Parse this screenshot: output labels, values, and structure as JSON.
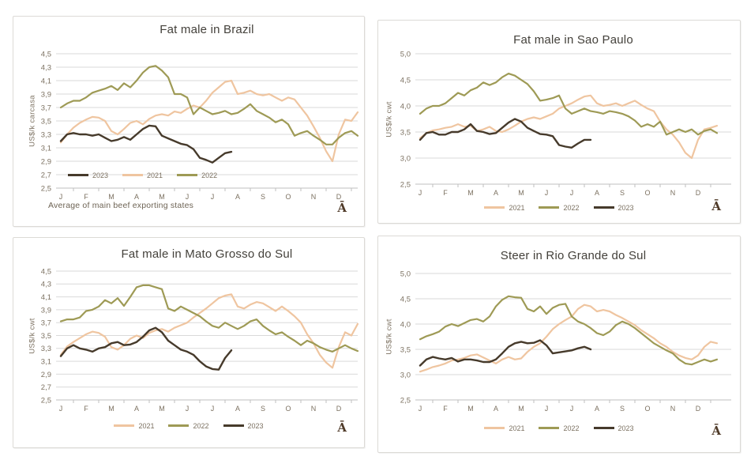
{
  "watermark": "Ā",
  "colors": {
    "series_2021": "#efc5a0",
    "series_2022": "#9e9a55",
    "series_2023": "#463a2b",
    "grid": "#d9d9d9",
    "axis": "#bfbfbf",
    "tick_text": "#7c7161",
    "title_text": "#44413b"
  },
  "chart_data": [
    {
      "type": "line",
      "title": "Fat male in Brazil",
      "ylabel": "US$/k carcasa",
      "ymin": 2.5,
      "ymax": 4.5,
      "yticks": [
        "4,5",
        "4,3",
        "4,1",
        "3,9",
        "3,7",
        "3,5",
        "3,3",
        "3,1",
        "2,9",
        "2,7",
        "2,5"
      ],
      "months": [
        "J",
        "F",
        "M",
        "A",
        "M",
        "J",
        "J",
        "A",
        "S",
        "O",
        "N",
        "D"
      ],
      "legend": [
        "2023",
        "2021",
        "2022"
      ],
      "footnote": "Average  of main beef exporting states",
      "series": [
        {
          "name": "2021",
          "color": "#efc5a0",
          "width": 2.2,
          "values": [
            3.18,
            3.3,
            3.4,
            3.47,
            3.52,
            3.56,
            3.55,
            3.5,
            3.35,
            3.3,
            3.38,
            3.47,
            3.5,
            3.45,
            3.53,
            3.58,
            3.6,
            3.58,
            3.64,
            3.62,
            3.68,
            3.73,
            3.7,
            3.8,
            3.92,
            4.0,
            4.08,
            4.1,
            3.9,
            3.92,
            3.95,
            3.9,
            3.88,
            3.9,
            3.85,
            3.8,
            3.85,
            3.82,
            3.7,
            3.58,
            3.42,
            3.25,
            3.05,
            2.9,
            3.3,
            3.52,
            3.5,
            3.63
          ]
        },
        {
          "name": "2022",
          "color": "#9e9a55",
          "width": 2.2,
          "values": [
            3.7,
            3.76,
            3.8,
            3.8,
            3.85,
            3.92,
            3.95,
            3.98,
            4.02,
            3.96,
            4.06,
            4.0,
            4.1,
            4.22,
            4.3,
            4.32,
            4.25,
            4.15,
            3.9,
            3.9,
            3.85,
            3.6,
            3.7,
            3.65,
            3.6,
            3.62,
            3.65,
            3.6,
            3.62,
            3.68,
            3.75,
            3.65,
            3.6,
            3.55,
            3.48,
            3.52,
            3.45,
            3.28,
            3.32,
            3.35,
            3.28,
            3.22,
            3.15,
            3.15,
            3.25,
            3.32,
            3.35,
            3.28
          ]
        },
        {
          "name": "2023",
          "color": "#463a2b",
          "width": 2.4,
          "values": [
            3.2,
            3.3,
            3.32,
            3.3,
            3.3,
            3.28,
            3.3,
            3.25,
            3.2,
            3.22,
            3.26,
            3.22,
            3.3,
            3.38,
            3.43,
            3.42,
            3.28,
            3.24,
            3.2,
            3.16,
            3.14,
            3.08,
            2.95,
            2.92,
            2.88,
            2.95,
            3.02,
            3.04
          ]
        }
      ]
    },
    {
      "type": "line",
      "title": "Fat male in Sao Paulo",
      "ylabel": "US$/k cwt",
      "ymin": 2.5,
      "ymax": 5.0,
      "yticks": [
        "5,0",
        "4,5",
        "4,0",
        "3,5",
        "3,0",
        "2,5"
      ],
      "months": [
        "J",
        "F",
        "M",
        "A",
        "M",
        "J",
        "J",
        "A",
        "S",
        "O",
        "N",
        "D"
      ],
      "legend": [
        "2021",
        "2022",
        "2023"
      ],
      "series": [
        {
          "name": "2021",
          "color": "#efc5a0",
          "width": 2.2,
          "values": [
            3.38,
            3.48,
            3.53,
            3.55,
            3.58,
            3.6,
            3.65,
            3.6,
            3.62,
            3.52,
            3.55,
            3.6,
            3.52,
            3.5,
            3.55,
            3.62,
            3.7,
            3.75,
            3.78,
            3.75,
            3.8,
            3.85,
            3.95,
            4.0,
            4.05,
            4.12,
            4.18,
            4.2,
            4.05,
            4.0,
            4.02,
            4.05,
            4.0,
            4.05,
            4.1,
            4.02,
            3.95,
            3.9,
            3.7,
            3.55,
            3.45,
            3.3,
            3.1,
            3.0,
            3.35,
            3.55,
            3.58,
            3.62
          ]
        },
        {
          "name": "2022",
          "color": "#9e9a55",
          "width": 2.2,
          "values": [
            3.85,
            3.95,
            4.0,
            4.0,
            4.05,
            4.15,
            4.25,
            4.2,
            4.3,
            4.35,
            4.45,
            4.4,
            4.45,
            4.55,
            4.62,
            4.58,
            4.5,
            4.42,
            4.28,
            4.1,
            4.12,
            4.15,
            4.2,
            3.95,
            3.85,
            3.9,
            3.95,
            3.9,
            3.88,
            3.85,
            3.9,
            3.88,
            3.85,
            3.8,
            3.72,
            3.6,
            3.65,
            3.6,
            3.7,
            3.45,
            3.5,
            3.55,
            3.5,
            3.55,
            3.45,
            3.52,
            3.55,
            3.48
          ]
        },
        {
          "name": "2023",
          "color": "#463a2b",
          "width": 2.4,
          "values": [
            3.35,
            3.48,
            3.5,
            3.45,
            3.45,
            3.5,
            3.5,
            3.55,
            3.65,
            3.52,
            3.5,
            3.46,
            3.48,
            3.58,
            3.68,
            3.75,
            3.7,
            3.58,
            3.52,
            3.46,
            3.45,
            3.42,
            3.25,
            3.22,
            3.2,
            3.28,
            3.35,
            3.35
          ]
        }
      ]
    },
    {
      "type": "line",
      "title": "Fat male in Mato Grosso do Sul",
      "ylabel": "US$/k cwt",
      "ymin": 2.5,
      "ymax": 4.5,
      "yticks": [
        "4,5",
        "4,3",
        "4,1",
        "3,9",
        "3,7",
        "3,5",
        "3,3",
        "3,1",
        "2,9",
        "2,7",
        "2,5"
      ],
      "months": [
        "J",
        "F",
        "M",
        "A",
        "M",
        "J",
        "J",
        "A",
        "S",
        "O",
        "N",
        "D"
      ],
      "legend": [
        "2021",
        "2022",
        "2023"
      ],
      "series": [
        {
          "name": "2021",
          "color": "#efc5a0",
          "width": 2.2,
          "values": [
            3.2,
            3.33,
            3.4,
            3.46,
            3.52,
            3.56,
            3.54,
            3.48,
            3.32,
            3.28,
            3.35,
            3.45,
            3.5,
            3.46,
            3.54,
            3.58,
            3.6,
            3.56,
            3.62,
            3.66,
            3.7,
            3.78,
            3.85,
            3.92,
            4.0,
            4.08,
            4.12,
            4.14,
            3.95,
            3.92,
            3.98,
            4.02,
            4.0,
            3.94,
            3.88,
            3.95,
            3.88,
            3.8,
            3.7,
            3.52,
            3.38,
            3.2,
            3.08,
            3.0,
            3.32,
            3.55,
            3.5,
            3.68
          ]
        },
        {
          "name": "2022",
          "color": "#9e9a55",
          "width": 2.2,
          "values": [
            3.72,
            3.75,
            3.75,
            3.78,
            3.88,
            3.9,
            3.95,
            4.05,
            4.0,
            4.08,
            3.96,
            4.1,
            4.25,
            4.28,
            4.28,
            4.25,
            4.22,
            3.92,
            3.88,
            3.95,
            3.9,
            3.85,
            3.8,
            3.72,
            3.65,
            3.62,
            3.7,
            3.65,
            3.6,
            3.65,
            3.72,
            3.75,
            3.65,
            3.58,
            3.52,
            3.55,
            3.48,
            3.42,
            3.35,
            3.42,
            3.38,
            3.32,
            3.28,
            3.25,
            3.3,
            3.35,
            3.3,
            3.26
          ]
        },
        {
          "name": "2023",
          "color": "#463a2b",
          "width": 2.4,
          "values": [
            3.18,
            3.3,
            3.35,
            3.3,
            3.28,
            3.25,
            3.3,
            3.32,
            3.38,
            3.4,
            3.35,
            3.36,
            3.4,
            3.48,
            3.58,
            3.62,
            3.55,
            3.42,
            3.35,
            3.28,
            3.25,
            3.2,
            3.1,
            3.02,
            2.98,
            2.97,
            3.15,
            3.27
          ]
        }
      ]
    },
    {
      "type": "line",
      "title": "Steer  in Rio Grande do Sul",
      "ylabel": "US$/k cwt",
      "ymin": 2.5,
      "ymax": 5.0,
      "yticks": [
        "5,0",
        "4,5",
        "4,0",
        "3,5",
        "3,0",
        "2,5"
      ],
      "months": [
        "J",
        "F",
        "M",
        "A",
        "M",
        "J",
        "J",
        "A",
        "S",
        "O",
        "N",
        "D"
      ],
      "legend": [
        "2021",
        "2022",
        "2023"
      ],
      "series": [
        {
          "name": "2021",
          "color": "#efc5a0",
          "width": 2.2,
          "values": [
            3.06,
            3.1,
            3.15,
            3.18,
            3.22,
            3.28,
            3.3,
            3.33,
            3.38,
            3.4,
            3.34,
            3.28,
            3.22,
            3.3,
            3.35,
            3.3,
            3.32,
            3.45,
            3.55,
            3.62,
            3.75,
            3.9,
            4.0,
            4.08,
            4.15,
            4.3,
            4.38,
            4.35,
            4.25,
            4.28,
            4.25,
            4.18,
            4.12,
            4.05,
            3.98,
            3.88,
            3.8,
            3.72,
            3.62,
            3.55,
            3.45,
            3.38,
            3.33,
            3.3,
            3.38,
            3.55,
            3.65,
            3.62
          ]
        },
        {
          "name": "2022",
          "color": "#9e9a55",
          "width": 2.2,
          "values": [
            3.7,
            3.76,
            3.8,
            3.85,
            3.95,
            4.0,
            3.96,
            4.02,
            4.08,
            4.1,
            4.05,
            4.15,
            4.35,
            4.48,
            4.55,
            4.53,
            4.52,
            4.3,
            4.25,
            4.35,
            4.2,
            4.32,
            4.38,
            4.4,
            4.15,
            4.05,
            4.0,
            3.92,
            3.82,
            3.78,
            3.85,
            3.98,
            4.05,
            4.0,
            3.92,
            3.82,
            3.72,
            3.62,
            3.55,
            3.48,
            3.42,
            3.3,
            3.22,
            3.2,
            3.25,
            3.3,
            3.26,
            3.3
          ]
        },
        {
          "name": "2023",
          "color": "#463a2b",
          "width": 2.4,
          "values": [
            3.18,
            3.3,
            3.35,
            3.32,
            3.3,
            3.33,
            3.26,
            3.3,
            3.3,
            3.28,
            3.25,
            3.25,
            3.3,
            3.42,
            3.55,
            3.62,
            3.65,
            3.62,
            3.63,
            3.68,
            3.58,
            3.42,
            3.44,
            3.46,
            3.48,
            3.52,
            3.55,
            3.5
          ]
        }
      ]
    }
  ]
}
